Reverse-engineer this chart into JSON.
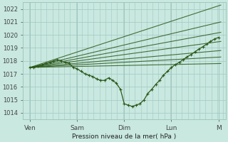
{
  "bg_color": "#c8e8e0",
  "grid_color": "#a0c8c0",
  "line_color": "#2d5a1b",
  "xlabel": "Pression niveau de la mer( hPa )",
  "ylim": [
    1013.5,
    1022.5
  ],
  "yticks": [
    1014,
    1015,
    1016,
    1017,
    1018,
    1019,
    1020,
    1021,
    1022
  ],
  "xtick_labels": [
    "Ven",
    "Sam",
    "Dim",
    "Lun",
    "M"
  ],
  "xtick_positions": [
    0,
    1,
    2,
    3,
    4
  ],
  "ensemble_lines": [
    [
      [
        0,
        1017.5
      ],
      [
        4.05,
        1022.3
      ]
    ],
    [
      [
        0,
        1017.5
      ],
      [
        4.05,
        1021.0
      ]
    ],
    [
      [
        0,
        1017.5
      ],
      [
        4.05,
        1020.2
      ]
    ],
    [
      [
        0,
        1017.5
      ],
      [
        4.05,
        1019.5
      ]
    ],
    [
      [
        0,
        1017.5
      ],
      [
        4.05,
        1018.8
      ]
    ],
    [
      [
        0,
        1017.5
      ],
      [
        4.05,
        1018.3
      ]
    ],
    [
      [
        0,
        1017.5
      ],
      [
        4.05,
        1017.8
      ]
    ]
  ],
  "main_x": [
    0,
    0.08,
    0.16,
    0.25,
    0.33,
    0.42,
    0.5,
    0.58,
    0.67,
    0.75,
    0.83,
    0.92,
    1.0,
    1.08,
    1.17,
    1.25,
    1.33,
    1.42,
    1.5,
    1.58,
    1.67,
    1.75,
    1.83,
    1.92,
    2.0,
    2.08,
    2.17,
    2.25,
    2.33,
    2.42,
    2.5,
    2.58,
    2.67,
    2.75,
    2.83,
    2.92,
    3.0,
    3.08,
    3.17,
    3.25,
    3.33,
    3.42,
    3.5,
    3.58,
    3.67,
    3.75,
    3.83,
    3.92,
    4.0
  ],
  "main_y": [
    1017.5,
    1017.5,
    1017.6,
    1017.7,
    1017.8,
    1017.9,
    1018.0,
    1018.1,
    1018.0,
    1017.9,
    1017.8,
    1017.5,
    1017.4,
    1017.2,
    1017.0,
    1016.9,
    1016.8,
    1016.6,
    1016.5,
    1016.5,
    1016.7,
    1016.5,
    1016.3,
    1015.8,
    1014.7,
    1014.6,
    1014.5,
    1014.6,
    1014.7,
    1015.0,
    1015.5,
    1015.8,
    1016.2,
    1016.5,
    1016.9,
    1017.2,
    1017.5,
    1017.7,
    1017.9,
    1018.1,
    1018.3,
    1018.5,
    1018.7,
    1018.9,
    1019.1,
    1019.3,
    1019.5,
    1019.7,
    1019.8
  ],
  "figsize": [
    3.2,
    2.0
  ],
  "dpi": 100
}
